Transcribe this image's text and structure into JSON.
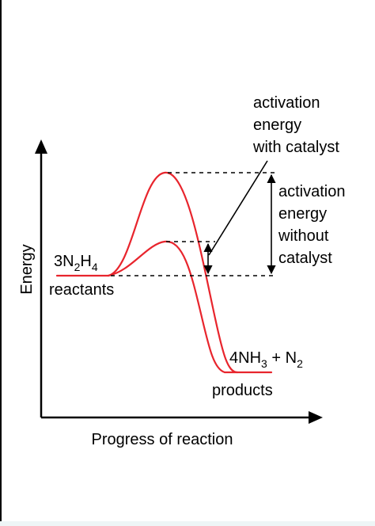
{
  "diagram": {
    "y_axis_label": "Energy",
    "x_axis_label": "Progress of reaction",
    "reactants": {
      "formula": {
        "coef": "3",
        "e1": "N",
        "s1": "2",
        "e2": "H",
        "s2": "4"
      },
      "label": "reactants"
    },
    "products": {
      "formula": {
        "coef": "4",
        "e1": "NH",
        "s1": "3",
        "plus": " + ",
        "e2": "N",
        "s2": "2"
      },
      "label": "products"
    },
    "annotation_with_catalyst": {
      "line1": "activation",
      "line2": "energy",
      "line3": "with catalyst"
    },
    "annotation_without_catalyst": {
      "line1": "activation",
      "line2": "energy",
      "line3": "without",
      "line4": "catalyst"
    },
    "colors": {
      "curve": "#e8252d",
      "axes": "#000000",
      "text": "#000000",
      "frame": "#000000",
      "bottom_strip": "#eef5f6"
    }
  }
}
